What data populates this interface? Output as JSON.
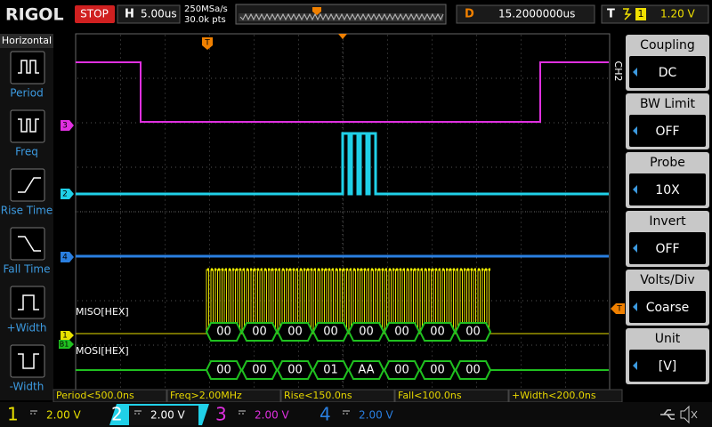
{
  "top_bar": {
    "logo": "RIGOL",
    "run_state": "STOP",
    "timebase_label": "H",
    "timebase": "5.00us",
    "sample_rate": "250MSa/s",
    "memory_depth": "30.0k pts",
    "delay_label": "D",
    "delay": "15.2000000us",
    "trigger_label": "T",
    "trigger_source": "1",
    "trigger_level": "1.20 V"
  },
  "left_menu": {
    "title": "Horizontal",
    "items": [
      "Period",
      "Freq",
      "Rise Time",
      "Fall Time",
      "+Width",
      "-Width"
    ]
  },
  "right_menu": {
    "channel": "CH2",
    "items": [
      {
        "label": "Coupling",
        "value": "DC"
      },
      {
        "label": "BW Limit",
        "value": "OFF"
      },
      {
        "label": "Probe",
        "value": "10X"
      },
      {
        "label": "Invert",
        "value": "OFF"
      },
      {
        "label": "Volts/Div",
        "value": "Coarse"
      },
      {
        "label": "Unit",
        "value": "[V]"
      }
    ]
  },
  "markers": {
    "ch3": "3",
    "ch2": "2",
    "ch4": "4",
    "ch1": "1",
    "bus": "B1",
    "trigger_position": "T",
    "trigger_level": "T"
  },
  "decode": {
    "miso_label": "MISO[HEX]",
    "miso": [
      "00",
      "00",
      "00",
      "00",
      "00",
      "00",
      "00",
      "00"
    ],
    "mosi_label": "MOSI[HEX]",
    "mosi": [
      "00",
      "00",
      "00",
      "01",
      "AA",
      "00",
      "00",
      "00"
    ]
  },
  "measurements": [
    "Period<500.0ns",
    "Freq>2.00MHz",
    "Rise<150.0ns",
    "Fall<100.0ns",
    "+Width<200.0ns"
  ],
  "channels": [
    {
      "number": "1",
      "scale": "2.00 V"
    },
    {
      "number": "2",
      "scale": "2.00 V"
    },
    {
      "number": "3",
      "scale": "2.00 V"
    },
    {
      "number": "4",
      "scale": "2.00 V"
    }
  ]
}
